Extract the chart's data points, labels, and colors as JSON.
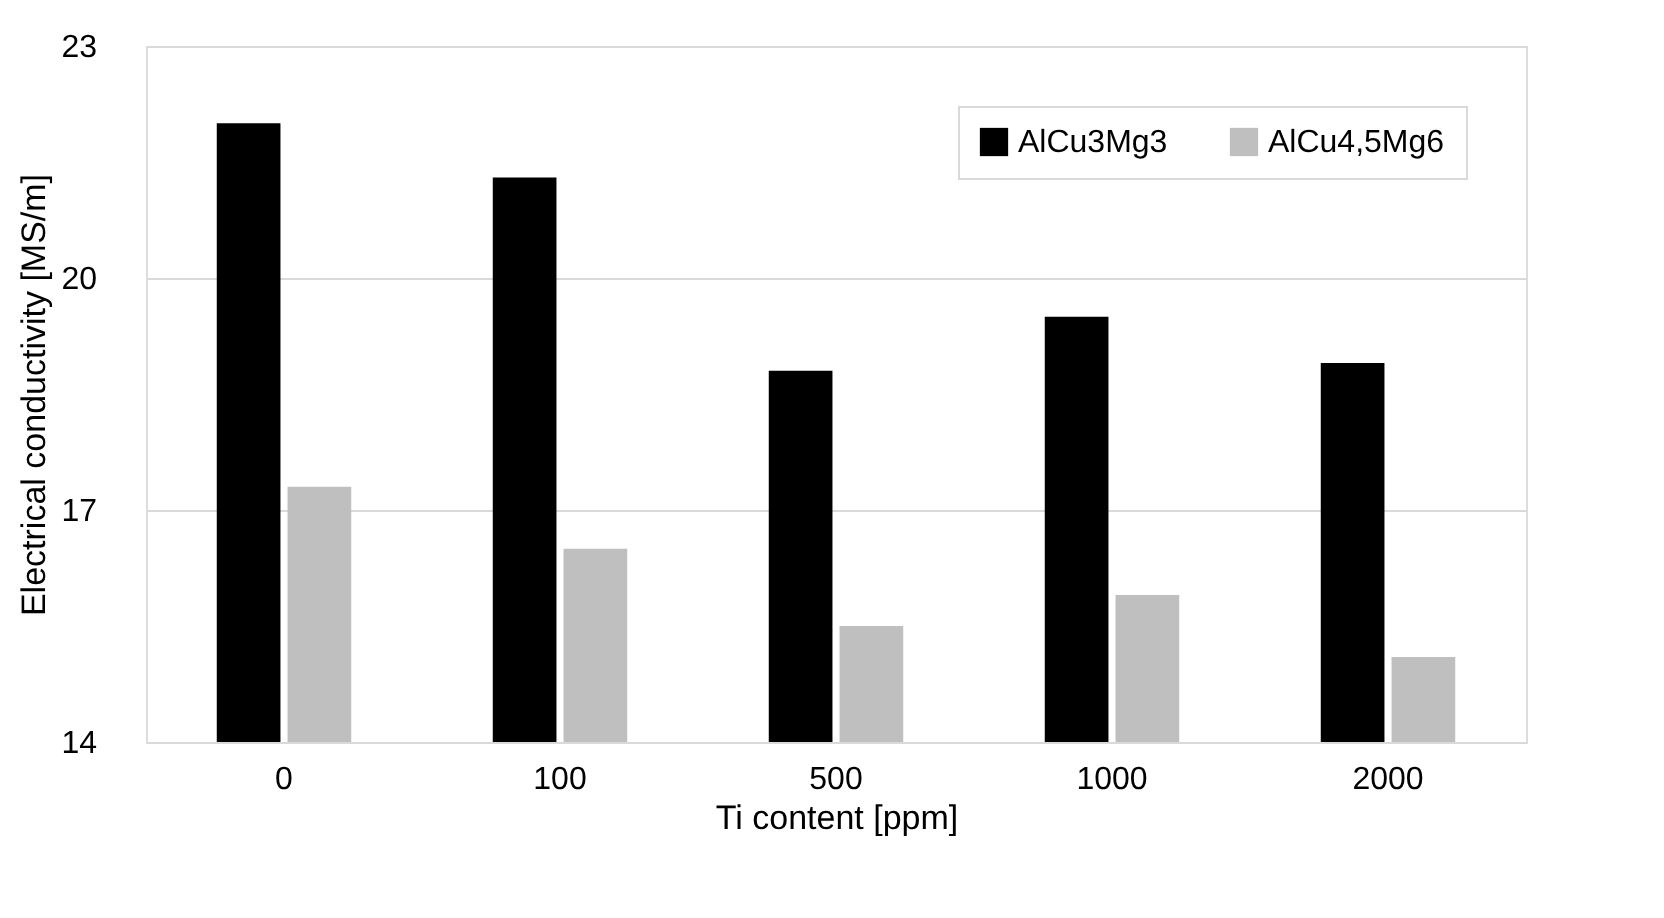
{
  "chart_data": {
    "type": "bar",
    "xlabel": "Ti content [ppm]",
    "ylabel": "Electrical conductivity [MS/m]",
    "categories": [
      "0",
      "100",
      "500",
      "1000",
      "2000"
    ],
    "series": [
      {
        "name": "AlCu3Mg3",
        "color": "#000000",
        "values": [
          22.0,
          21.3,
          18.8,
          19.5,
          18.9
        ]
      },
      {
        "name": "AlCu4,5Mg6",
        "color": "#bfbfbf",
        "values": [
          17.3,
          16.5,
          15.5,
          15.9,
          15.1
        ]
      }
    ],
    "ylim": [
      14,
      23
    ],
    "yticks": [
      14,
      17,
      20,
      23
    ],
    "grid": "y",
    "legend": "top right"
  }
}
